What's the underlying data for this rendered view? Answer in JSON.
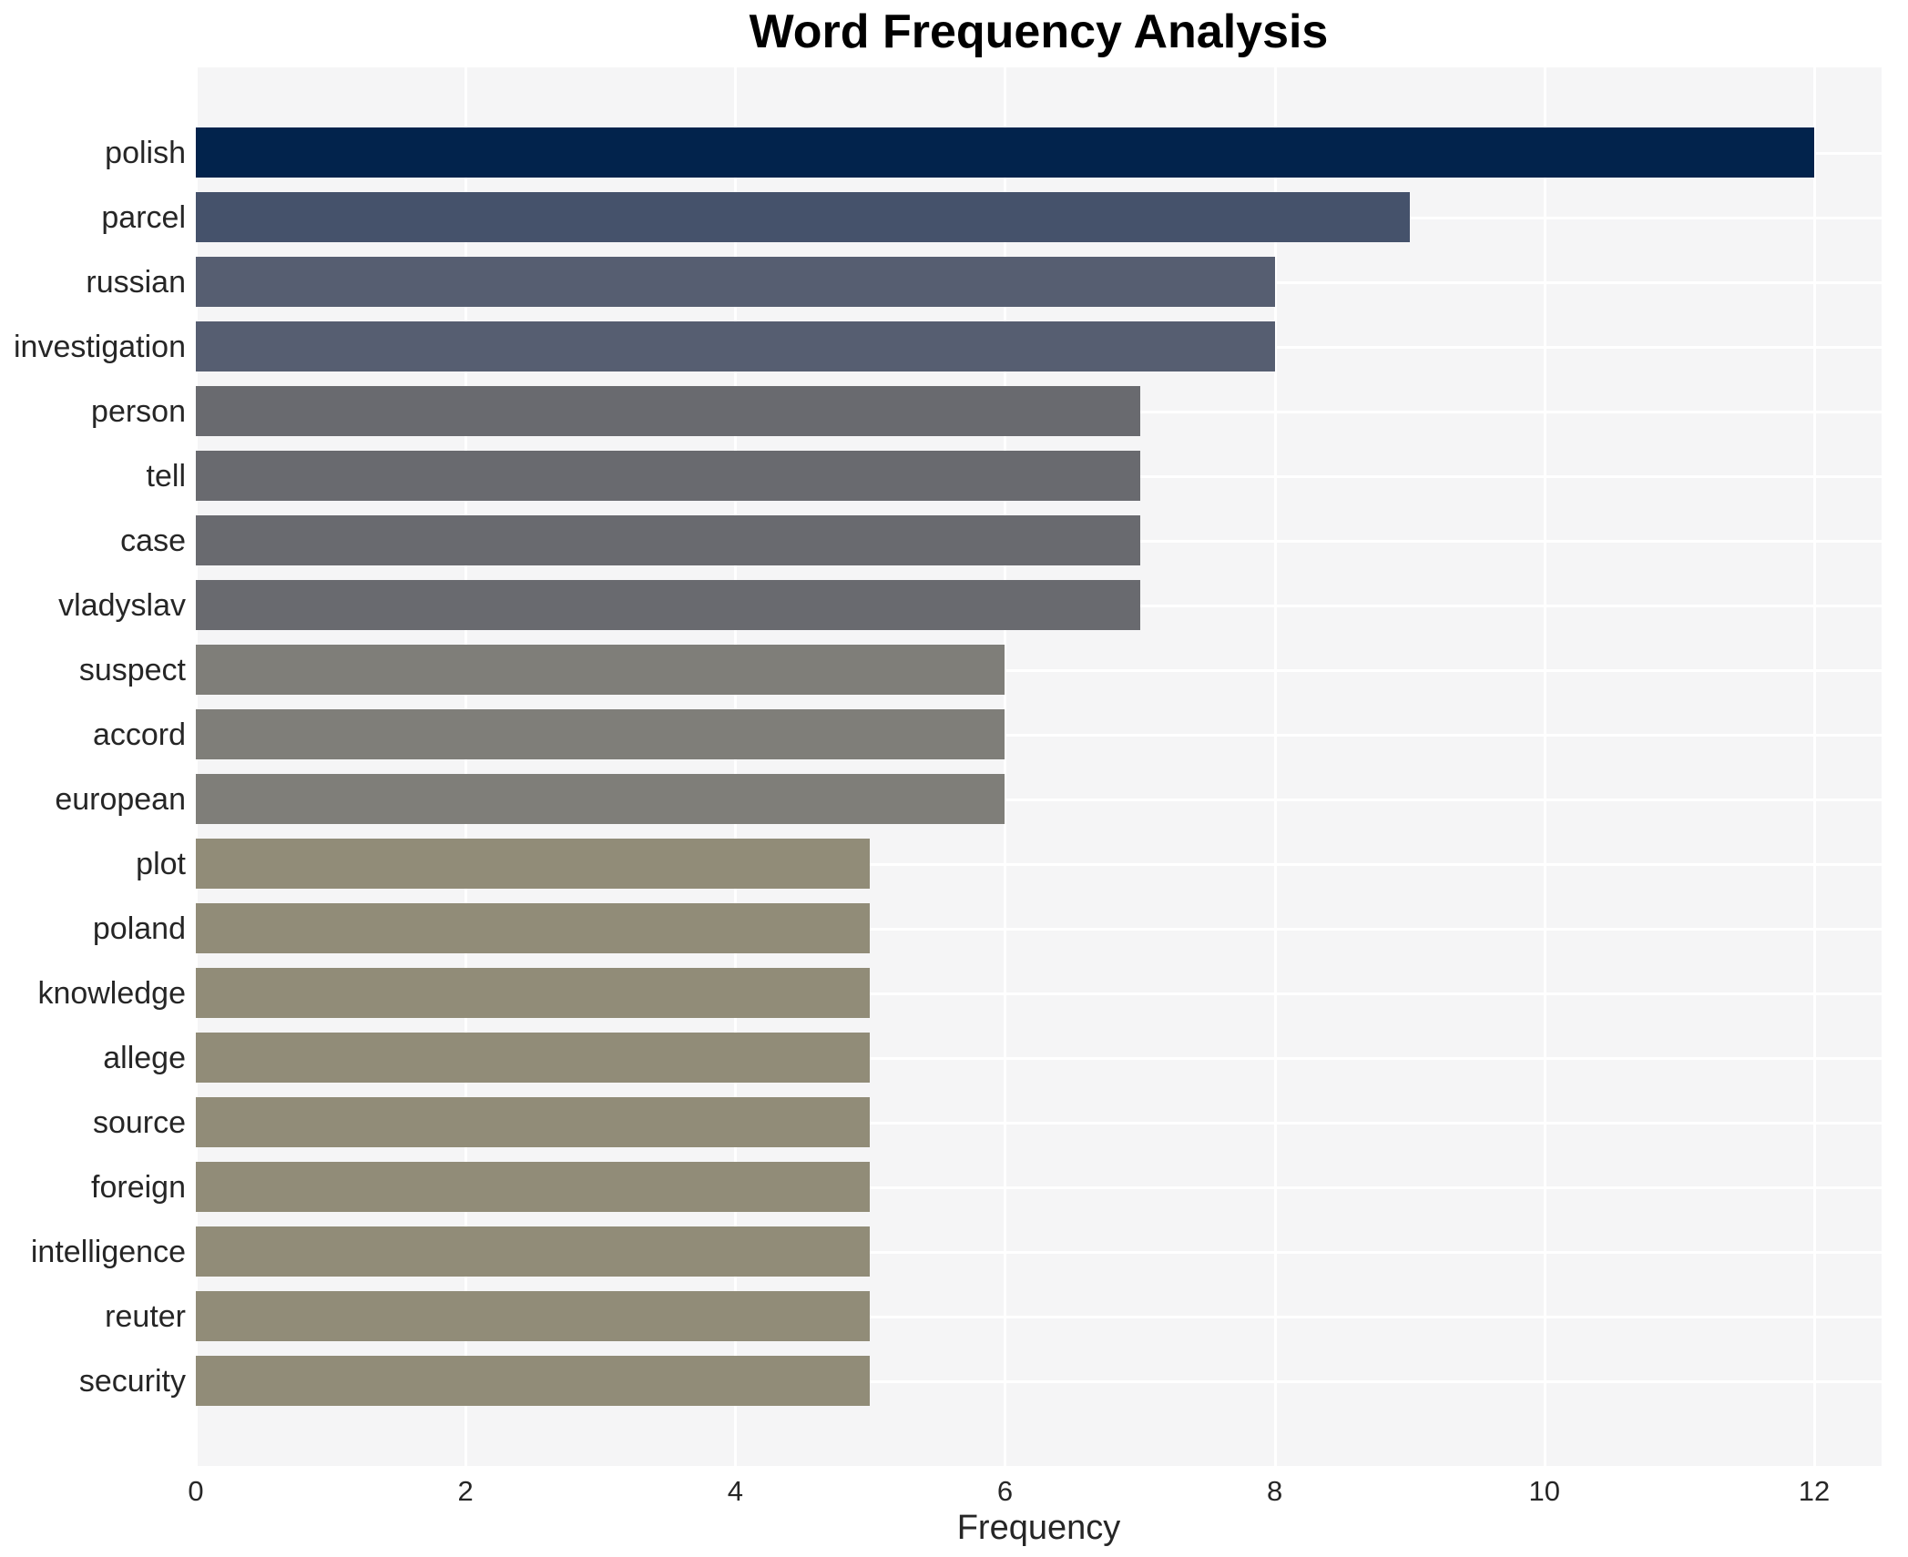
{
  "chart_data": {
    "type": "bar",
    "orientation": "horizontal",
    "title": "Word Frequency Analysis",
    "xlabel": "Frequency",
    "ylabel": "",
    "categories": [
      "polish",
      "parcel",
      "russian",
      "investigation",
      "person",
      "tell",
      "case",
      "vladyslav",
      "suspect",
      "accord",
      "european",
      "plot",
      "poland",
      "knowledge",
      "allege",
      "source",
      "foreign",
      "intelligence",
      "reuter",
      "security"
    ],
    "values": [
      12,
      9,
      8,
      8,
      7,
      7,
      7,
      7,
      6,
      6,
      6,
      5,
      5,
      5,
      5,
      5,
      5,
      5,
      5,
      5
    ],
    "bar_colors": [
      "#02234c",
      "#45526b",
      "#565e71",
      "#565e71",
      "#696a6f",
      "#696a6f",
      "#696a6f",
      "#696a6f",
      "#7f7e79",
      "#7f7e79",
      "#7f7e79",
      "#918c78",
      "#918c78",
      "#918c78",
      "#918c78",
      "#918c78",
      "#918c78",
      "#918c78",
      "#918c78",
      "#918c78"
    ],
    "xticks": [
      0,
      2,
      4,
      6,
      8,
      10,
      12
    ],
    "xlim": [
      0,
      12.5
    ],
    "grid": true,
    "legend": null,
    "colors": {
      "plot_background": "#f5f5f6",
      "grid_color": "#ffffff",
      "tick_text": "#262626",
      "title_text": "#000000"
    }
  }
}
